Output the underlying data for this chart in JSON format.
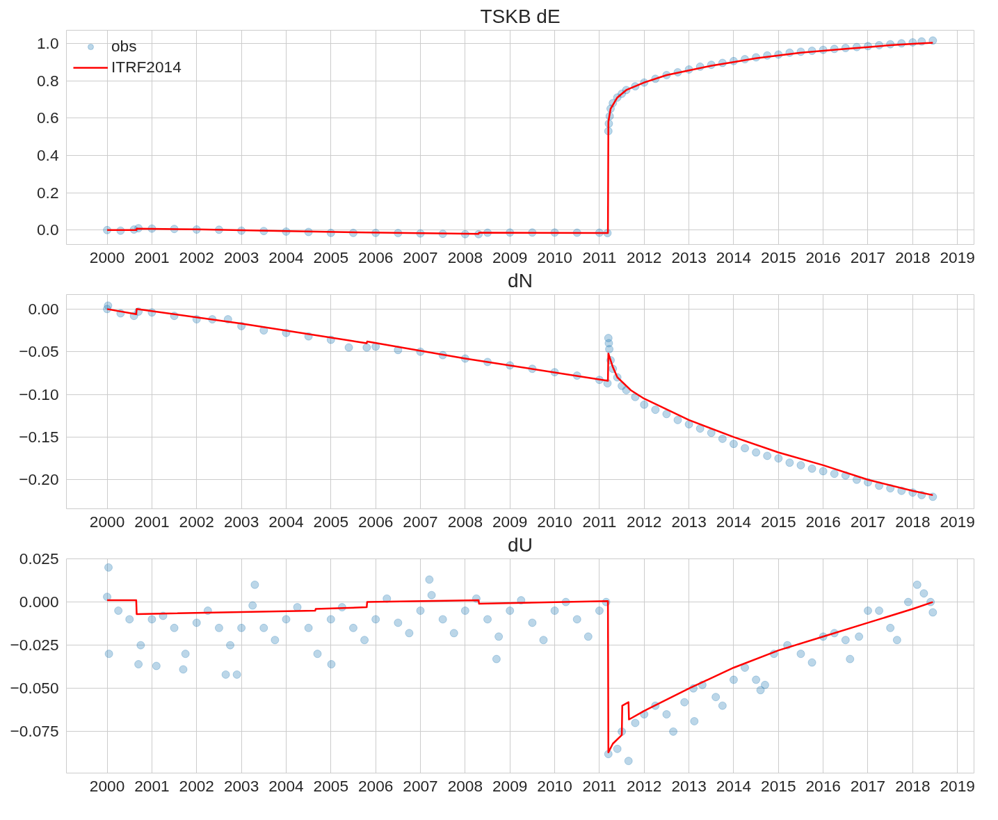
{
  "chart_data": [
    {
      "type": "scatter",
      "title": "TSKB dE",
      "xlim": [
        1999.09,
        2019.37
      ],
      "ylim": [
        -0.077,
        1.07
      ],
      "xticks": [
        2000,
        2001,
        2002,
        2003,
        2004,
        2005,
        2006,
        2007,
        2008,
        2009,
        2010,
        2011,
        2012,
        2013,
        2014,
        2015,
        2016,
        2017,
        2018,
        2019
      ],
      "yticks": [
        {
          "value": 0,
          "label": "0.0"
        },
        {
          "value": 0.2,
          "label": "0.2"
        },
        {
          "value": 0.4,
          "label": "0.4"
        },
        {
          "value": 0.6,
          "label": "0.6"
        },
        {
          "value": 0.8,
          "label": "0.8"
        },
        {
          "value": 1,
          "label": "1.0"
        }
      ],
      "grid": true,
      "legend": "top left",
      "series": [
        {
          "name": "obs",
          "marker": "circle",
          "color": "#1f77b4",
          "x": [
            2000,
            2000.3,
            2000.6,
            2000.7,
            2001,
            2001.5,
            2002,
            2002.5,
            2003,
            2003.5,
            2004,
            2004.5,
            2005,
            2005.5,
            2006,
            2006.5,
            2007,
            2007.5,
            2008,
            2008.3,
            2008.5,
            2009,
            2009.5,
            2010,
            2010.5,
            2011,
            2011.18,
            2011.2,
            2011.21,
            2011.23,
            2011.25,
            2011.3,
            2011.4,
            2011.5,
            2011.6,
            2011.8,
            2012,
            2012.25,
            2012.5,
            2012.75,
            2013,
            2013.25,
            2013.5,
            2013.75,
            2014,
            2014.25,
            2014.5,
            2014.75,
            2015,
            2015.25,
            2015.5,
            2015.75,
            2016,
            2016.25,
            2016.5,
            2016.75,
            2017,
            2017.25,
            2017.5,
            2017.75,
            2018,
            2018.2,
            2018.45
          ],
          "values": [
            0,
            -0.003,
            0.003,
            0.01,
            0.008,
            0.006,
            0.003,
            0.002,
            -0.003,
            -0.005,
            -0.008,
            -0.01,
            -0.015,
            -0.015,
            -0.015,
            -0.016,
            -0.018,
            -0.02,
            -0.022,
            -0.022,
            -0.014,
            -0.013,
            -0.013,
            -0.013,
            -0.014,
            -0.014,
            -0.016,
            0.53,
            0.57,
            0.61,
            0.65,
            0.68,
            0.71,
            0.73,
            0.75,
            0.77,
            0.79,
            0.81,
            0.83,
            0.845,
            0.86,
            0.875,
            0.885,
            0.895,
            0.905,
            0.915,
            0.925,
            0.935,
            0.94,
            0.95,
            0.955,
            0.96,
            0.965,
            0.97,
            0.975,
            0.98,
            0.985,
            0.99,
            0.995,
            1.0,
            1.005,
            1.01,
            1.015
          ]
        },
        {
          "name": "ITRF2014",
          "type": "line",
          "line_style": "solid",
          "color": "#ff0000",
          "x": [
            2000,
            2000.65,
            2000.66,
            2002,
            2004,
            2005.8,
            2008.3,
            2008.31,
            2011.19,
            2011.2,
            2011.25,
            2011.4,
            2011.6,
            2012,
            2012.5,
            2013,
            2013.5,
            2014,
            2014.5,
            2015,
            2015.5,
            2016,
            2016.5,
            2017,
            2017.5,
            2018,
            2018.45
          ],
          "values": [
            0,
            0,
            0.008,
            0.004,
            -0.005,
            -0.013,
            -0.02,
            -0.014,
            -0.016,
            0.58,
            0.65,
            0.71,
            0.75,
            0.79,
            0.83,
            0.855,
            0.88,
            0.9,
            0.92,
            0.935,
            0.95,
            0.96,
            0.97,
            0.98,
            0.99,
            0.997,
            1.003
          ]
        }
      ]
    },
    {
      "type": "scatter",
      "title": "dN",
      "xlim": [
        1999.09,
        2019.37
      ],
      "ylim": [
        -0.234,
        0.017
      ],
      "xticks": [
        2000,
        2001,
        2002,
        2003,
        2004,
        2005,
        2006,
        2007,
        2008,
        2009,
        2010,
        2011,
        2012,
        2013,
        2014,
        2015,
        2016,
        2017,
        2018,
        2019
      ],
      "yticks": [
        {
          "value": 0,
          "label": "0.00"
        },
        {
          "value": -0.05,
          "label": "−0.05"
        },
        {
          "value": -0.1,
          "label": "−0.10"
        },
        {
          "value": -0.15,
          "label": "−0.15"
        },
        {
          "value": -0.2,
          "label": "−0.20"
        }
      ],
      "grid": true,
      "series": [
        {
          "marker": "circle",
          "color": "#1f77b4",
          "x": [
            2000,
            2000.02,
            2000.3,
            2000.6,
            2000.7,
            2001,
            2001.5,
            2002,
            2002.35,
            2002.7,
            2003,
            2003.5,
            2004,
            2004.5,
            2005,
            2005.4,
            2005.8,
            2006,
            2006.5,
            2007,
            2007.5,
            2008,
            2008.5,
            2009,
            2009.5,
            2010,
            2010.5,
            2011,
            2011.18,
            2011.2,
            2011.21,
            2011.22,
            2011.25,
            2011.3,
            2011.4,
            2011.5,
            2011.6,
            2011.8,
            2012,
            2012.25,
            2012.5,
            2012.75,
            2013,
            2013.25,
            2013.5,
            2013.75,
            2014,
            2014.25,
            2014.5,
            2014.75,
            2015,
            2015.25,
            2015.5,
            2015.75,
            2016,
            2016.25,
            2016.5,
            2016.75,
            2017,
            2017.25,
            2017.5,
            2017.75,
            2018,
            2018.2,
            2018.45
          ],
          "values": [
            0,
            0.004,
            -0.005,
            -0.008,
            -0.003,
            -0.004,
            -0.008,
            -0.012,
            -0.012,
            -0.012,
            -0.02,
            -0.025,
            -0.028,
            -0.032,
            -0.036,
            -0.045,
            -0.045,
            -0.044,
            -0.048,
            -0.05,
            -0.054,
            -0.058,
            -0.062,
            -0.066,
            -0.07,
            -0.074,
            -0.078,
            -0.083,
            -0.087,
            -0.034,
            -0.04,
            -0.047,
            -0.06,
            -0.07,
            -0.08,
            -0.09,
            -0.095,
            -0.103,
            -0.112,
            -0.118,
            -0.123,
            -0.13,
            -0.135,
            -0.14,
            -0.145,
            -0.152,
            -0.158,
            -0.163,
            -0.168,
            -0.172,
            -0.175,
            -0.18,
            -0.183,
            -0.187,
            -0.19,
            -0.193,
            -0.195,
            -0.2,
            -0.203,
            -0.207,
            -0.21,
            -0.213,
            -0.215,
            -0.218,
            -0.22
          ]
        },
        {
          "type": "line",
          "line_style": "solid",
          "color": "#ff0000",
          "x": [
            2000,
            2000.65,
            2000.66,
            2003,
            2005.8,
            2005.81,
            2008,
            2011.19,
            2011.2,
            2011.3,
            2011.4,
            2011.7,
            2012,
            2013,
            2014,
            2015,
            2016,
            2017,
            2018,
            2018.45
          ],
          "values": [
            0,
            -0.006,
            0,
            -0.017,
            -0.04,
            -0.038,
            -0.058,
            -0.084,
            -0.052,
            -0.068,
            -0.08,
            -0.095,
            -0.105,
            -0.13,
            -0.15,
            -0.168,
            -0.183,
            -0.2,
            -0.213,
            -0.218
          ]
        }
      ]
    },
    {
      "type": "scatter",
      "title": "dU",
      "xlim": [
        1999.09,
        2019.37
      ],
      "ylim": [
        -0.099,
        0.025
      ],
      "xticks": [
        2000,
        2001,
        2002,
        2003,
        2004,
        2005,
        2006,
        2007,
        2008,
        2009,
        2010,
        2011,
        2012,
        2013,
        2014,
        2015,
        2016,
        2017,
        2018,
        2019
      ],
      "yticks": [
        {
          "value": 0.025,
          "label": "0.025"
        },
        {
          "value": 0,
          "label": "0.000"
        },
        {
          "value": -0.025,
          "label": "−0.025"
        },
        {
          "value": -0.05,
          "label": "−0.050"
        },
        {
          "value": -0.075,
          "label": "−0.075"
        }
      ],
      "grid": true,
      "series": [
        {
          "marker": "circle",
          "color": "#1f77b4",
          "x": [
            2000,
            2000.03,
            2000.04,
            2000.25,
            2000.5,
            2000.7,
            2000.75,
            2001,
            2001.1,
            2001.25,
            2001.5,
            2001.7,
            2001.75,
            2002,
            2002.25,
            2002.5,
            2002.65,
            2002.75,
            2002.9,
            2003,
            2003.25,
            2003.3,
            2003.5,
            2003.75,
            2004,
            2004.25,
            2004.5,
            2004.7,
            2005,
            2005.01,
            2005.25,
            2005.5,
            2005.75,
            2006,
            2006.25,
            2006.5,
            2006.75,
            2007,
            2007.2,
            2007.25,
            2007.5,
            2007.75,
            2008,
            2008.25,
            2008.5,
            2008.7,
            2008.75,
            2009,
            2009.25,
            2009.5,
            2009.75,
            2010,
            2010.25,
            2010.5,
            2010.75,
            2011,
            2011.15,
            2011.2,
            2011.4,
            2011.5,
            2011.65,
            2011.8,
            2012,
            2012.25,
            2012.5,
            2012.65,
            2012.9,
            2013.1,
            2013.12,
            2013.3,
            2013.6,
            2013.75,
            2014,
            2014.25,
            2014.5,
            2014.6,
            2014.7,
            2014.9,
            2015.2,
            2015.5,
            2015.75,
            2016,
            2016.25,
            2016.5,
            2016.6,
            2016.8,
            2017,
            2017.25,
            2017.5,
            2017.65,
            2017.9,
            2018.1,
            2018.25,
            2018.4,
            2018.45
          ],
          "values": [
            0.003,
            0.02,
            -0.03,
            -0.005,
            -0.01,
            -0.036,
            -0.025,
            -0.01,
            -0.037,
            -0.008,
            -0.015,
            -0.039,
            -0.03,
            -0.012,
            -0.005,
            -0.015,
            -0.042,
            -0.025,
            -0.042,
            -0.015,
            -0.002,
            0.01,
            -0.015,
            -0.022,
            -0.01,
            -0.003,
            -0.015,
            -0.03,
            -0.01,
            -0.036,
            -0.003,
            -0.015,
            -0.022,
            -0.01,
            0.002,
            -0.012,
            -0.018,
            -0.005,
            0.013,
            0.004,
            -0.01,
            -0.018,
            -0.005,
            0.002,
            -0.01,
            -0.033,
            -0.02,
            -0.005,
            0.001,
            -0.012,
            -0.022,
            -0.005,
            0,
            -0.01,
            -0.02,
            -0.005,
            0,
            -0.088,
            -0.085,
            -0.075,
            -0.092,
            -0.07,
            -0.065,
            -0.06,
            -0.065,
            -0.075,
            -0.058,
            -0.05,
            -0.069,
            -0.048,
            -0.055,
            -0.06,
            -0.045,
            -0.038,
            -0.045,
            -0.051,
            -0.048,
            -0.03,
            -0.025,
            -0.03,
            -0.035,
            -0.02,
            -0.018,
            -0.022,
            -0.033,
            -0.02,
            -0.005,
            -0.005,
            -0.015,
            -0.022,
            0,
            0.01,
            0.005,
            0,
            -0.006
          ]
        },
        {
          "type": "line",
          "line_style": "solid",
          "color": "#ff0000",
          "x": [
            2000,
            2000.65,
            2000.66,
            2004.65,
            2004.66,
            2005.8,
            2005.81,
            2008.3,
            2008.31,
            2011.19,
            2011.2,
            2011.3,
            2011.5,
            2011.51,
            2011.65,
            2011.66,
            2012,
            2013,
            2014,
            2015,
            2016,
            2017,
            2018,
            2018.45
          ],
          "values": [
            0.001,
            0.001,
            -0.007,
            -0.005,
            -0.004,
            -0.003,
            0,
            0.001,
            -0.001,
            0.0005,
            -0.087,
            -0.082,
            -0.077,
            -0.06,
            -0.058,
            -0.068,
            -0.063,
            -0.05,
            -0.038,
            -0.028,
            -0.02,
            -0.012,
            -0.004,
            0
          ]
        }
      ]
    }
  ]
}
